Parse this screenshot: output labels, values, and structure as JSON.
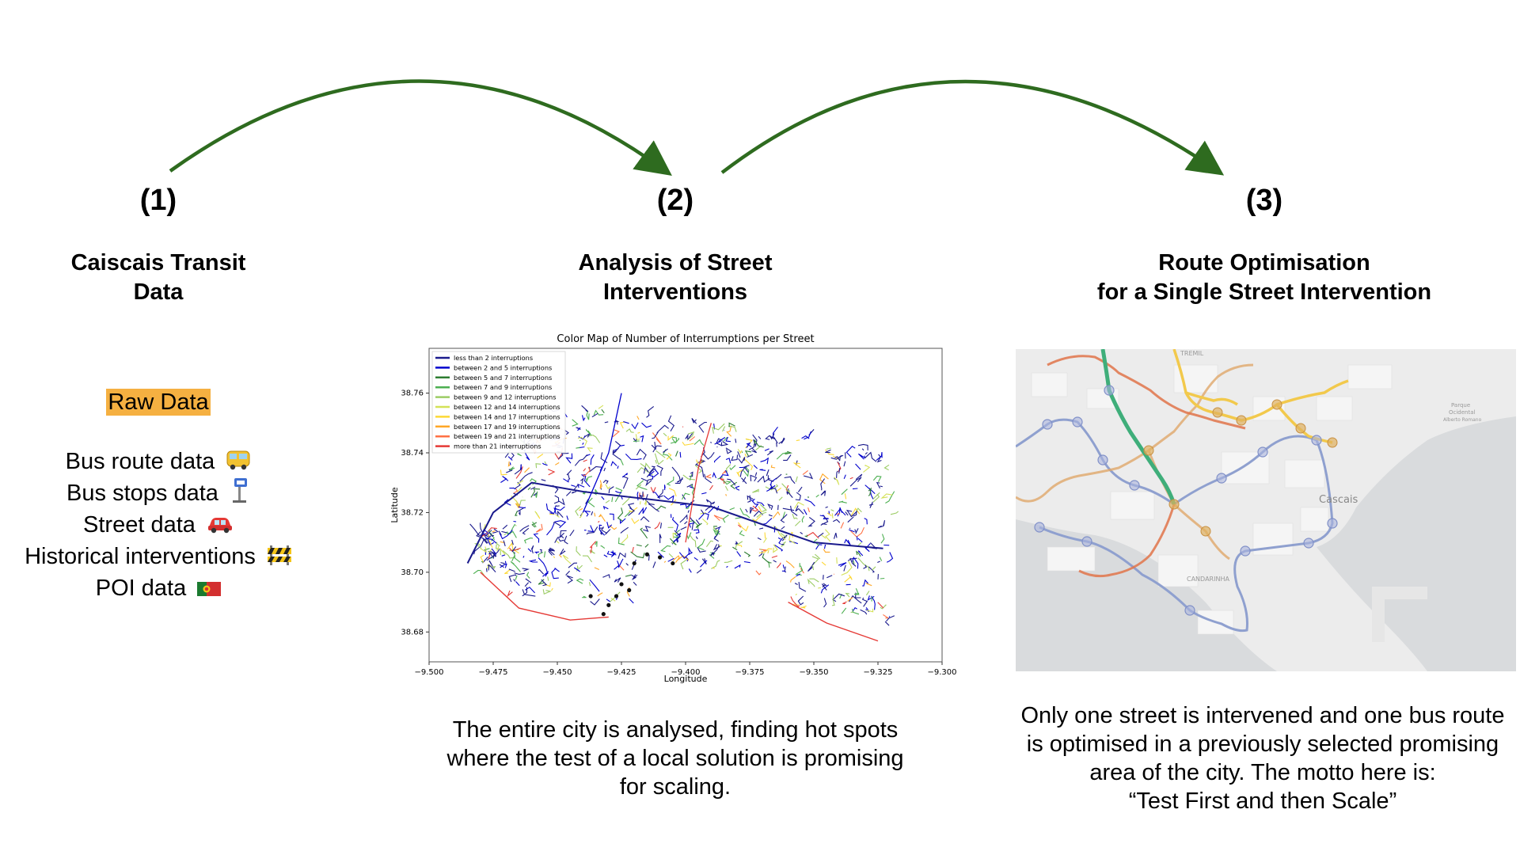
{
  "steps": [
    {
      "number": "(1)",
      "title_lines": [
        "Caiscais Transit",
        "Data"
      ]
    },
    {
      "number": "(2)",
      "title_lines": [
        "Analysis of Street",
        "Interventions"
      ]
    },
    {
      "number": "(3)",
      "title_lines": [
        "Route Optimisation",
        "for a Single Street Intervention"
      ]
    }
  ],
  "raw_data": {
    "label": "Raw Data",
    "items": [
      {
        "text": "Bus route data",
        "icon": "bus-icon"
      },
      {
        "text": "Bus stops data",
        "icon": "bus-stop-icon"
      },
      {
        "text": "Street data",
        "icon": "car-icon"
      },
      {
        "text": "Historical interventions",
        "icon": "construction-barrier-icon"
      },
      {
        "text": "POI data",
        "icon": "portugal-flag-icon"
      }
    ]
  },
  "captions": {
    "step2": [
      "The entire city is analysed, finding hot spots",
      "where the test of a local solution is promising",
      "for scaling."
    ],
    "step3": [
      "Only one street is intervened and one bus route",
      "is optimised in a previously selected promising",
      "area of the city. The motto here is:",
      "“Test First and then Scale”"
    ]
  },
  "arrow_color": "#2e6b1f",
  "chart_data": {
    "type": "line",
    "title": "Color Map of Number of Interrumptions per Street",
    "xlabel": "Longitude",
    "ylabel": "Latitude",
    "xlim": [
      -9.5,
      -9.3
    ],
    "ylim": [
      38.67,
      38.775
    ],
    "x_ticks": [
      "−9.500",
      "−9.475",
      "−9.450",
      "−9.425",
      "−9.400",
      "−9.375",
      "−9.350",
      "−9.325",
      "−9.300"
    ],
    "y_ticks": [
      "38.68",
      "38.70",
      "38.72",
      "38.74",
      "38.76"
    ],
    "legend_position": "top-left",
    "legend": [
      {
        "label": "less than 2 interruptions",
        "color": "#1a1a8c"
      },
      {
        "label": "between 2 and 5 interruptions",
        "color": "#0000cd"
      },
      {
        "label": "between 5 and 7 interruptions",
        "color": "#2e7d32"
      },
      {
        "label": "between 7 and 9 interruptions",
        "color": "#4caf50"
      },
      {
        "label": "between 9 and 12 interruptions",
        "color": "#9ccc65"
      },
      {
        "label": "between 12 and 14 interruptions",
        "color": "#d4e157"
      },
      {
        "label": "between 14 and 17 interruptions",
        "color": "#fdd835"
      },
      {
        "label": "between 17 and 19 interruptions",
        "color": "#ffa726"
      },
      {
        "label": "between 19 and 21 interruptions",
        "color": "#ff7043"
      },
      {
        "label": "more than 21 interruptions",
        "color": "#e53935"
      }
    ]
  },
  "map": {
    "labels": [
      "TREMIL",
      "Cascais",
      "CANDARINHA",
      "Parque",
      "Ocidental",
      "Alberto Romano"
    ]
  }
}
